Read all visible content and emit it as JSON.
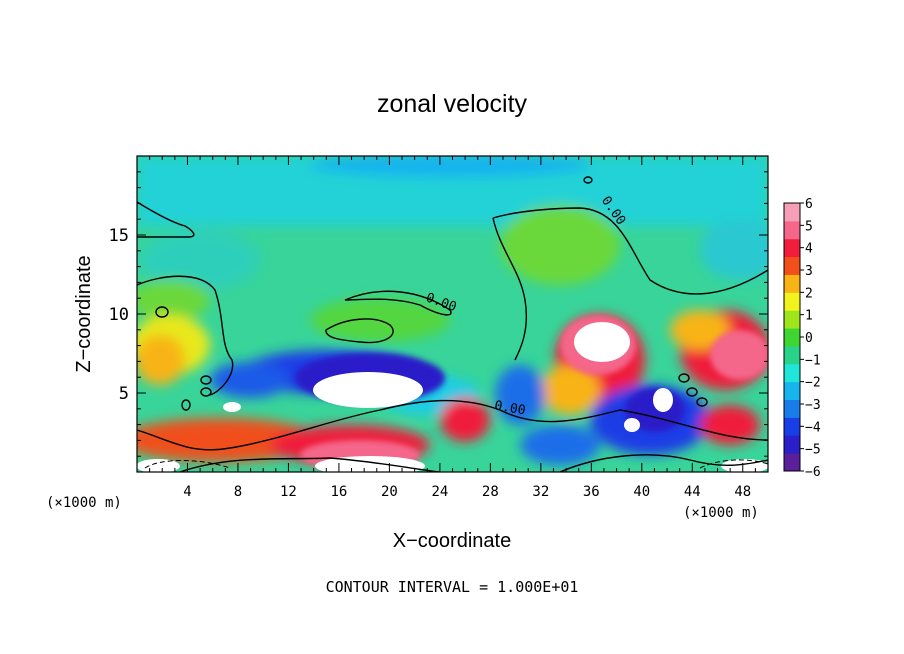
{
  "chart_data": {
    "type": "heatmap",
    "title": "zonal velocity",
    "xlabel": "X−coordinate",
    "ylabel": "Z−coordinate",
    "x_unit_left": "(×1000 m)",
    "x_unit_right": "(×1000 m)",
    "xlim": [
      0,
      50
    ],
    "ylim": [
      0,
      20
    ],
    "xticks": [
      4,
      8,
      12,
      16,
      20,
      24,
      28,
      32,
      36,
      40,
      44,
      48
    ],
    "yticks": [
      5,
      10,
      15
    ],
    "colorbar": {
      "min": -6,
      "max": 6,
      "ticks": [
        "6",
        "5",
        "4",
        "3",
        "2",
        "1",
        "0",
        "−1",
        "−2",
        "−3",
        "−4",
        "−5",
        "−6"
      ],
      "colors": [
        "#5a1f9a",
        "#2a1fc8",
        "#1a3ee6",
        "#1a7ce8",
        "#18b4ee",
        "#1ee6d8",
        "#2ad28a",
        "#3ed630",
        "#9ee61a",
        "#f2f21e",
        "#f8b414",
        "#f2501a",
        "#f01e3a",
        "#f4668a",
        "#f6a0b8"
      ]
    },
    "contour_labels": [
      {
        "text": "0.00",
        "x": 37.5,
        "y": 16.4,
        "angle": 55
      },
      {
        "text": "0.00",
        "x": 24.0,
        "y": 10.5,
        "angle": 20
      },
      {
        "text": "0.00",
        "x": 29.5,
        "y": 3.8,
        "angle": 10
      }
    ],
    "footer": "CONTOUR INTERVAL = 1.000E+01"
  }
}
